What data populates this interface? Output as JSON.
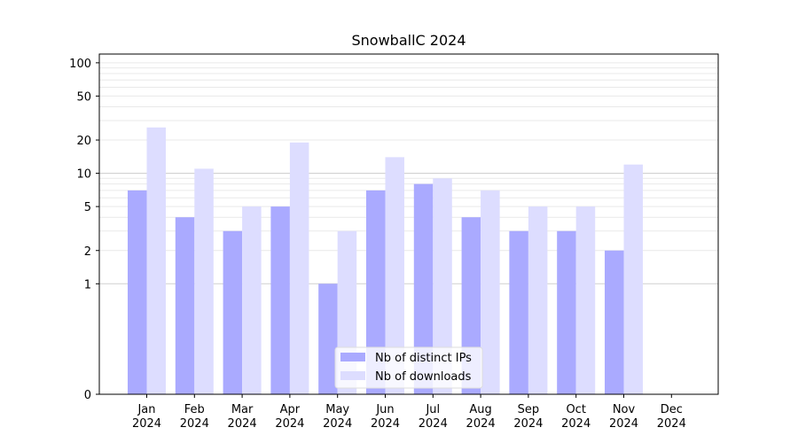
{
  "chart_data": {
    "type": "bar",
    "title": "SnowballC 2024",
    "xlabel": "",
    "ylabel": "",
    "yscale": "symlog",
    "ylim": [
      0,
      120
    ],
    "yticks": [
      0,
      1,
      2,
      5,
      10,
      20,
      50,
      100
    ],
    "grid": true,
    "legend_position": "bottom-center",
    "categories": [
      [
        "Jan",
        "2024"
      ],
      [
        "Feb",
        "2024"
      ],
      [
        "Mar",
        "2024"
      ],
      [
        "Apr",
        "2024"
      ],
      [
        "May",
        "2024"
      ],
      [
        "Jun",
        "2024"
      ],
      [
        "Jul",
        "2024"
      ],
      [
        "Aug",
        "2024"
      ],
      [
        "Sep",
        "2024"
      ],
      [
        "Oct",
        "2024"
      ],
      [
        "Nov",
        "2024"
      ],
      [
        "Dec",
        "2024"
      ]
    ],
    "series": [
      {
        "name": "Nb of distinct IPs",
        "color": "#aaaaff",
        "values": [
          7,
          4,
          3,
          5,
          1,
          7,
          8,
          4,
          3,
          3,
          2,
          0
        ]
      },
      {
        "name": "Nb of downloads",
        "color": "#ddddff",
        "values": [
          26,
          11,
          5,
          19,
          3,
          14,
          9,
          7,
          5,
          5,
          12,
          0
        ]
      }
    ]
  }
}
